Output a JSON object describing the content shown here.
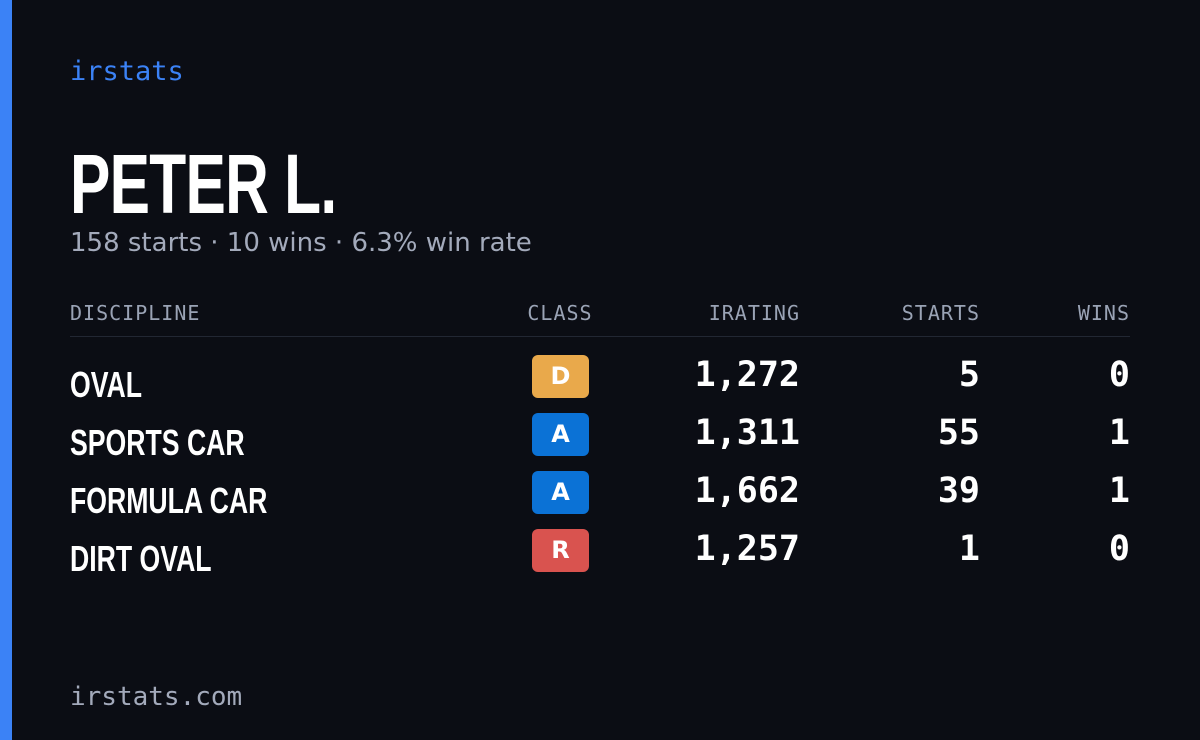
{
  "header": {
    "brand": "irstats",
    "name": "PETER L.",
    "summary": "158 starts · 10 wins · 6.3% win rate"
  },
  "table": {
    "columns": [
      "DISCIPLINE",
      "CLASS",
      "IRATING",
      "STARTS",
      "WINS"
    ],
    "rows": [
      {
        "discipline": "OVAL",
        "class": "D",
        "class_color": "#e9a94b",
        "irating": "1,272",
        "starts": "5",
        "wins": "0"
      },
      {
        "discipline": "SPORTS CAR",
        "class": "A",
        "class_color": "#0b72d6",
        "irating": "1,311",
        "starts": "55",
        "wins": "1"
      },
      {
        "discipline": "FORMULA CAR",
        "class": "A",
        "class_color": "#0b72d6",
        "irating": "1,662",
        "starts": "39",
        "wins": "1"
      },
      {
        "discipline": "DIRT OVAL",
        "class": "R",
        "class_color": "#d9534f",
        "irating": "1,257",
        "starts": "1",
        "wins": "0"
      }
    ]
  },
  "footer": {
    "site": "irstats.com"
  }
}
